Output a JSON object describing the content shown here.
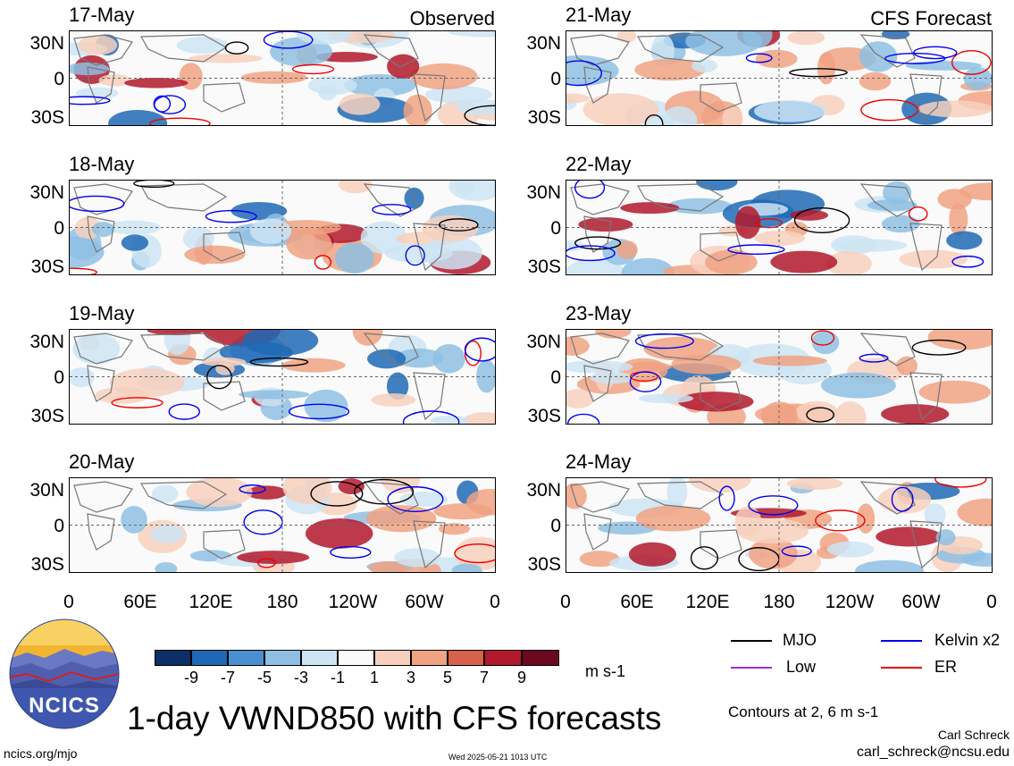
{
  "figure": {
    "title": "1-day VWND850 with CFS forecasts",
    "units": "m s-1",
    "contours_note": "Contours at 2, 6 m s-1",
    "author": "Carl Schreck",
    "email": "carl_schreck@ncsu.edu",
    "site": "ncics.org/mjo",
    "timestamp": "Wed 2025-05-21 1013 UTC",
    "logo_text": "NCICS"
  },
  "columns": {
    "left_tag": "Observed",
    "right_tag": "CFS Forecast"
  },
  "panels_left": [
    {
      "date": "17-May"
    },
    {
      "date": "18-May"
    },
    {
      "date": "19-May"
    },
    {
      "date": "20-May"
    }
  ],
  "panels_right": [
    {
      "date": "21-May"
    },
    {
      "date": "22-May"
    },
    {
      "date": "23-May"
    },
    {
      "date": "24-May"
    }
  ],
  "lat_labels": [
    "30N",
    "0",
    "30S"
  ],
  "lon_labels": [
    "0",
    "60E",
    "120E",
    "180",
    "120W",
    "60W",
    "0"
  ],
  "colorbar": {
    "labels": [
      "-9",
      "-7",
      "-5",
      "-3",
      "-1",
      "1",
      "3",
      "5",
      "7",
      "9"
    ],
    "colors": [
      "#0b2f66",
      "#1f68b5",
      "#4a90cf",
      "#8ebfe3",
      "#cde4f3",
      "#fafafa",
      "#f7d0bd",
      "#f0a283",
      "#d7614b",
      "#b2182b",
      "#6b0a1f"
    ]
  },
  "legend": {
    "items": [
      {
        "label": "MJO",
        "color": "#000000"
      },
      {
        "label": "Kelvin x2",
        "color": "#0000ee"
      },
      {
        "label": "Low",
        "color": "#9933cc"
      },
      {
        "label": "ER",
        "color": "#ee0000"
      }
    ]
  }
}
